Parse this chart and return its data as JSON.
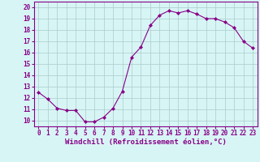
{
  "x": [
    0,
    1,
    2,
    3,
    4,
    5,
    6,
    7,
    8,
    9,
    10,
    11,
    12,
    13,
    14,
    15,
    16,
    17,
    18,
    19,
    20,
    21,
    22,
    23
  ],
  "y": [
    12.5,
    11.9,
    11.1,
    10.9,
    10.9,
    9.9,
    9.9,
    10.3,
    11.1,
    12.6,
    15.6,
    16.5,
    18.4,
    19.3,
    19.7,
    19.5,
    19.7,
    19.4,
    19.0,
    19.0,
    18.7,
    18.2,
    17.0,
    16.4
  ],
  "line_color": "#880088",
  "marker": "D",
  "marker_size": 2.2,
  "bg_color": "#d8f5f5",
  "grid_color": "#aacccc",
  "xlabel": "Windchill (Refroidissement éolien,°C)",
  "xlabel_color": "#880088",
  "xlabel_fontsize": 6.5,
  "ylim": [
    9.5,
    20.5
  ],
  "xlim": [
    -0.5,
    23.5
  ],
  "yticks": [
    10,
    11,
    12,
    13,
    14,
    15,
    16,
    17,
    18,
    19,
    20
  ],
  "xtick_labels": [
    "0",
    "1",
    "2",
    "3",
    "4",
    "5",
    "6",
    "7",
    "8",
    "9",
    "10",
    "11",
    "12",
    "13",
    "14",
    "15",
    "16",
    "17",
    "18",
    "19",
    "20",
    "21",
    "22",
    "23"
  ],
  "tick_fontsize": 5.5,
  "tick_color": "#880088",
  "spine_color": "#880088",
  "linewidth": 0.8
}
